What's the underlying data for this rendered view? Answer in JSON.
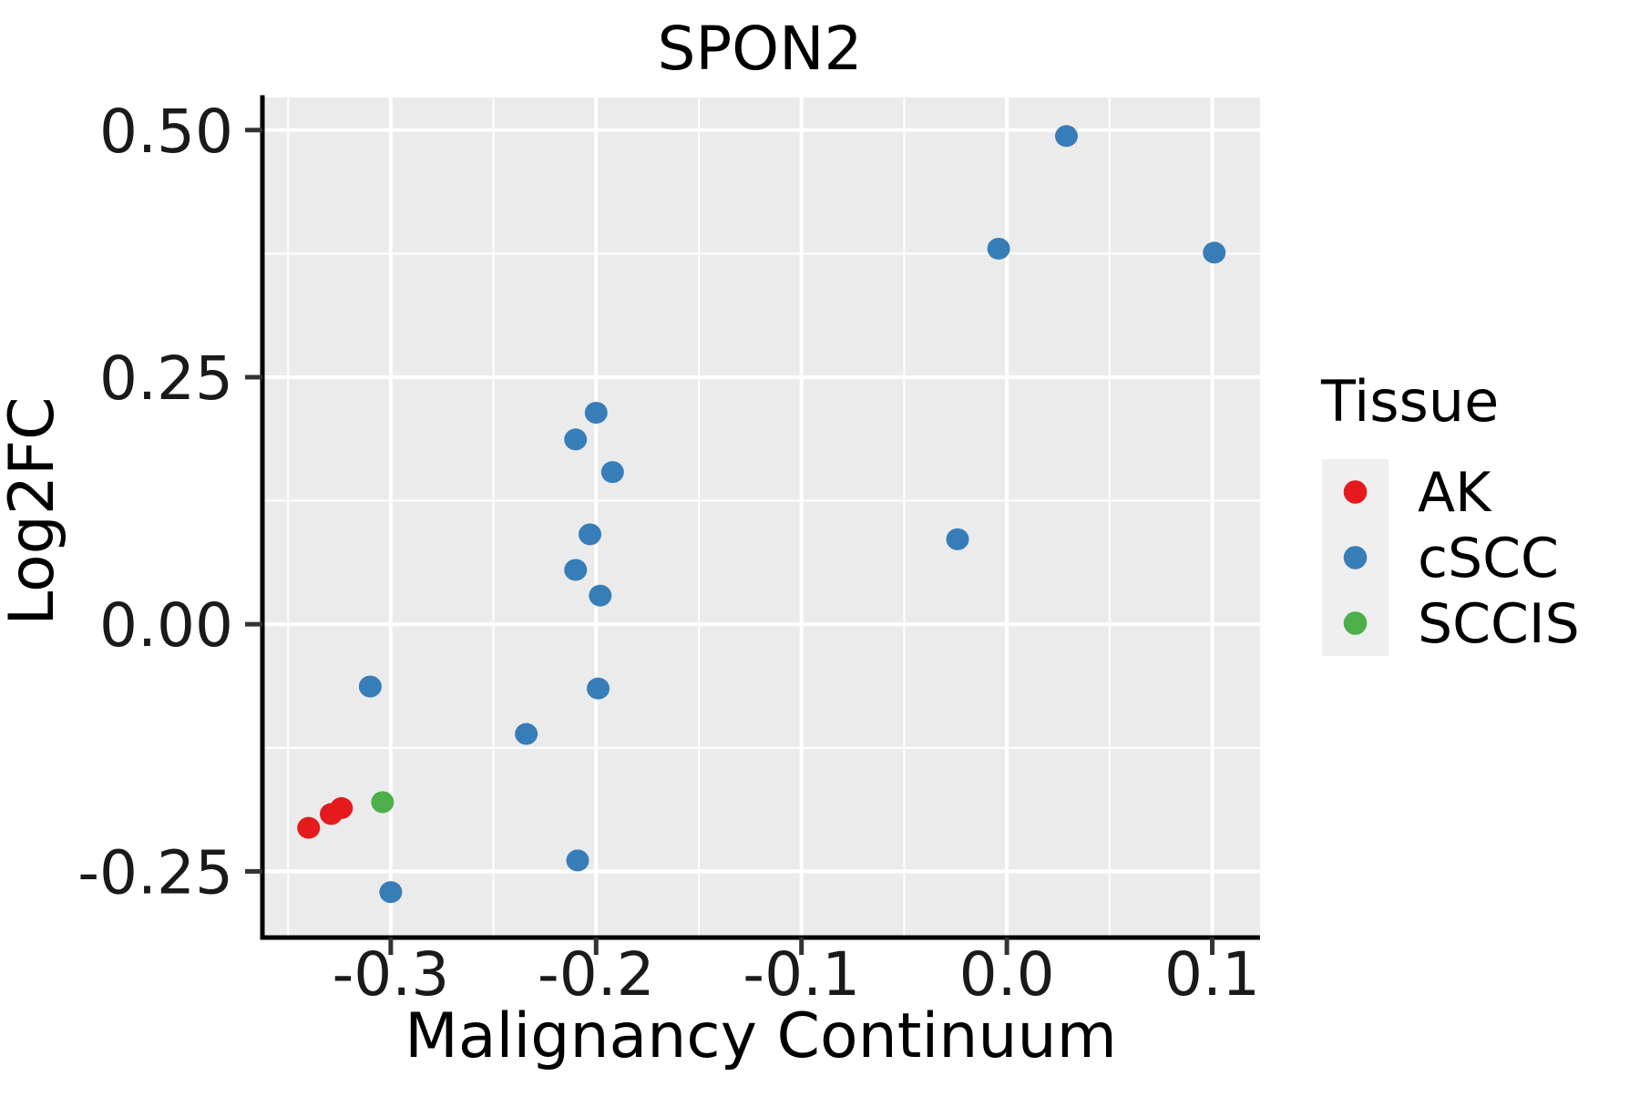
{
  "title": "SPON2",
  "axes": {
    "x": {
      "label": "Malignancy Continuum"
    },
    "y": {
      "label": "Log2FC"
    }
  },
  "legend": {
    "title": "Tissue",
    "items": [
      {
        "label": "AK",
        "color": "#E41A1C"
      },
      {
        "label": "cSCC",
        "color": "#377EB8"
      },
      {
        "label": "SCCIS",
        "color": "#4DAF4A"
      }
    ]
  },
  "colors": {
    "panel_background": "#EBEBEB",
    "gridline": "#FFFFFF",
    "axis_line": "#000000",
    "tick_mark": "#333333",
    "legend_key_background": "#EFEFEF"
  },
  "chart_data": {
    "type": "scatter",
    "title": "SPON2",
    "xlabel": "Malignancy Continuum",
    "ylabel": "Log2FC",
    "xlim": [
      -0.3625,
      0.1233
    ],
    "ylim": [
      -0.317,
      0.533
    ],
    "x_major_ticks": [
      -0.3,
      -0.2,
      -0.1,
      0.0,
      0.1
    ],
    "x_tick_labels": [
      "-0.3",
      "-0.2",
      "-0.1",
      "0.0",
      "0.1"
    ],
    "x_minor_ticks": [
      -0.35,
      -0.25,
      -0.15,
      -0.05,
      0.05
    ],
    "y_major_ticks": [
      0.5,
      0.25,
      0.0,
      -0.25
    ],
    "y_tick_labels": [
      "0.50",
      "0.25",
      "0.00",
      "-0.25"
    ],
    "y_minor_ticks": [
      0.375,
      0.125,
      -0.125
    ],
    "grid": true,
    "legend_position": "right",
    "series": [
      {
        "name": "AK",
        "color": "#E41A1C",
        "points": [
          [
            -0.34,
            -0.206
          ],
          [
            -0.329,
            -0.192
          ],
          [
            -0.324,
            -0.186
          ]
        ]
      },
      {
        "name": "cSCC",
        "color": "#377EB8",
        "points": [
          [
            0.029,
            0.494
          ],
          [
            -0.004,
            0.38
          ],
          [
            0.101,
            0.376
          ],
          [
            -0.2,
            0.214
          ],
          [
            -0.21,
            0.187
          ],
          [
            -0.192,
            0.154
          ],
          [
            -0.203,
            0.091
          ],
          [
            -0.024,
            0.086
          ],
          [
            -0.21,
            0.055
          ],
          [
            -0.198,
            0.029
          ],
          [
            -0.31,
            -0.063
          ],
          [
            -0.199,
            -0.065
          ],
          [
            -0.234,
            -0.111
          ],
          [
            -0.209,
            -0.239
          ],
          [
            -0.3,
            -0.271
          ]
        ]
      },
      {
        "name": "SCCIS",
        "color": "#4DAF4A",
        "points": [
          [
            -0.304,
            -0.18
          ]
        ]
      }
    ]
  }
}
